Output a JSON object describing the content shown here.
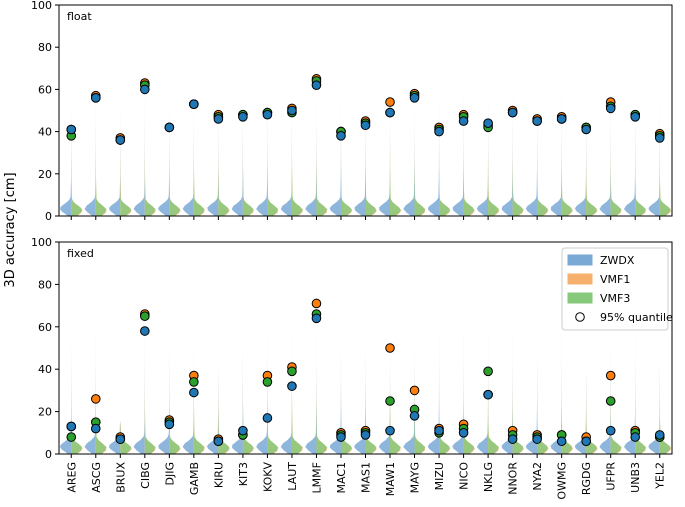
{
  "chart_data": {
    "type": "violin",
    "ylabel": "3D accuracy [cm]",
    "ylim": [
      0,
      100
    ],
    "yticks": [
      0,
      20,
      40,
      60,
      80,
      100
    ],
    "stations": [
      "AREG",
      "ASCG",
      "BRUX",
      "CIBG",
      "DJIG",
      "GAMB",
      "KIRU",
      "KIT3",
      "KOKV",
      "LAUT",
      "LMMF",
      "MAC1",
      "MAS1",
      "MAW1",
      "MAYG",
      "MIZU",
      "NICO",
      "NKLG",
      "NNOR",
      "NYA2",
      "OWMG",
      "RGDG",
      "UFPR",
      "UNB3",
      "YEL2"
    ],
    "legend": {
      "position": "top-right of bottom panel",
      "entries": [
        {
          "label": "ZWDX",
          "color": "#7aa9d6"
        },
        {
          "label": "VMF1",
          "color": "#f6b06e"
        },
        {
          "label": "VMF3",
          "color": "#86c97b"
        },
        {
          "label": "95% quantile",
          "marker": "circle"
        }
      ]
    },
    "series_colors": {
      "ZWDX": "#7aa9d6",
      "VMF1": "#f6b06e",
      "VMF3": "#86c97b",
      "ZWDX_dot": "#1f77b4",
      "VMF1_dot": "#ff7f0e",
      "VMF3_dot": "#2ca02c"
    },
    "panels": [
      {
        "label": "float",
        "q95": {
          "ZWDX": [
            41,
            56,
            36,
            60,
            42,
            53,
            46,
            47,
            48,
            50,
            62,
            38,
            43,
            49,
            56,
            40,
            45,
            44,
            49,
            45,
            46,
            41,
            51,
            47,
            37
          ],
          "VMF1": [
            41,
            57,
            37,
            63,
            42,
            53,
            48,
            48,
            49,
            51,
            65,
            40,
            45,
            54,
            58,
            42,
            48,
            43,
            50,
            46,
            47,
            42,
            54,
            48,
            39
          ],
          "VMF3": [
            38,
            56,
            36,
            62,
            42,
            53,
            47,
            48,
            49,
            49,
            64,
            40,
            44,
            49,
            57,
            41,
            47,
            42,
            49,
            45,
            46,
            42,
            52,
            48,
            38
          ]
        },
        "max": [
          60,
          100,
          55,
          100,
          67,
          100,
          82,
          95,
          100,
          96,
          100,
          68,
          80,
          82,
          100,
          65,
          84,
          70,
          90,
          72,
          86,
          71,
          100,
          100,
          64
        ]
      },
      {
        "label": "fixed",
        "q95": {
          "ZWDX": [
            13,
            12,
            7,
            58,
            14,
            29,
            6,
            11,
            17,
            32,
            64,
            8,
            9,
            11,
            18,
            11,
            10,
            28,
            7,
            7,
            6,
            6,
            11,
            8,
            9
          ],
          "VMF1": [
            13,
            26,
            8,
            66,
            16,
            37,
            7,
            9,
            37,
            41,
            71,
            10,
            11,
            50,
            30,
            12,
            14,
            28,
            11,
            9,
            9,
            8,
            37,
            11,
            8
          ],
          "VMF3": [
            8,
            15,
            7,
            65,
            15,
            34,
            6,
            9,
            34,
            39,
            66,
            9,
            10,
            25,
            21,
            10,
            12,
            39,
            9,
            8,
            9,
            6,
            25,
            10,
            8
          ]
        },
        "max": [
          59,
          100,
          16,
          100,
          80,
          100,
          43,
          86,
          100,
          100,
          100,
          58,
          61,
          100,
          100,
          70,
          76,
          97,
          79,
          49,
          77,
          41,
          100,
          100,
          44
        ]
      }
    ]
  }
}
